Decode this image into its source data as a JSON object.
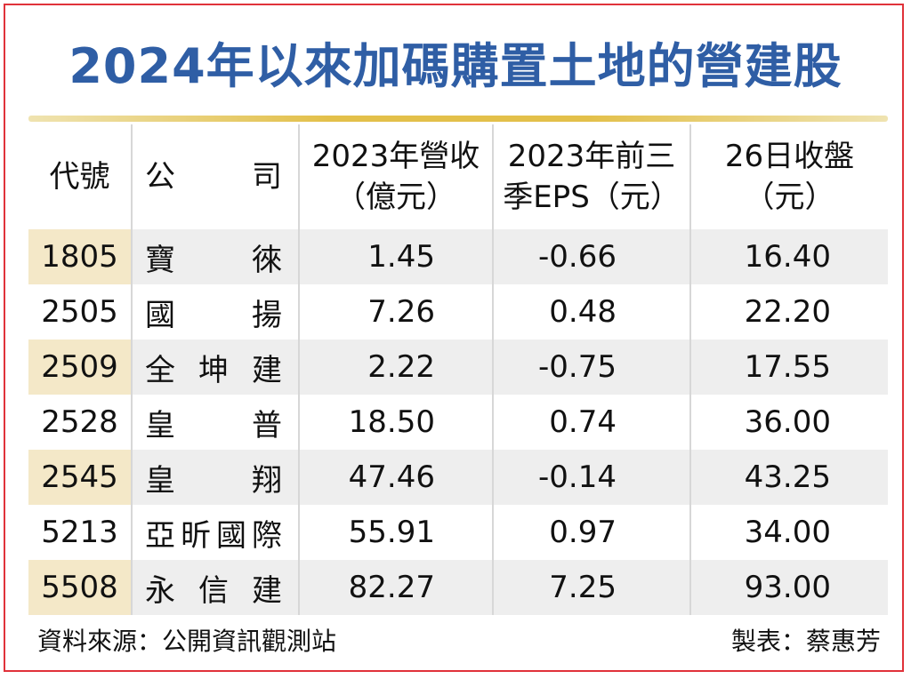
{
  "title": "2024年以來加碼購置土地的營建股",
  "columns": {
    "code": "代號",
    "company": [
      "公",
      "司"
    ],
    "revenue": [
      "2023年營收",
      "（億元）"
    ],
    "eps": [
      "2023年前三",
      "季EPS（元）"
    ],
    "close": [
      "26日收盤",
      "（元）"
    ]
  },
  "rows": [
    {
      "code": "1805",
      "name": [
        "寶",
        "徠"
      ],
      "revenue": "1.45",
      "eps": "-0.66",
      "close": "16.40"
    },
    {
      "code": "2505",
      "name": [
        "國",
        "揚"
      ],
      "revenue": "7.26",
      "eps": "0.48",
      "close": "22.20"
    },
    {
      "code": "2509",
      "name": [
        "全",
        "坤",
        "建"
      ],
      "revenue": "2.22",
      "eps": "-0.75",
      "close": "17.55"
    },
    {
      "code": "2528",
      "name": [
        "皇",
        "普"
      ],
      "revenue": "18.50",
      "eps": "0.74",
      "close": "36.00"
    },
    {
      "code": "2545",
      "name": [
        "皇",
        "翔"
      ],
      "revenue": "47.46",
      "eps": "-0.14",
      "close": "43.25"
    },
    {
      "code": "5213",
      "name": [
        "亞",
        "昕",
        "國",
        "際"
      ],
      "revenue": "55.91",
      "eps": "0.97",
      "close": "34.00"
    },
    {
      "code": "5508",
      "name": [
        "永",
        "信",
        "建"
      ],
      "revenue": "82.27",
      "eps": "7.25",
      "close": "93.00"
    }
  ],
  "footer": {
    "source": "資料來源：公開資訊觀測站",
    "author": "製表：蔡惠芳"
  },
  "colors": {
    "border": "#e0323a",
    "title": "#2f5ea5",
    "rule": "#e3c04a",
    "alt_row": "#eeeeee",
    "alt_code": "#f4e8c8"
  }
}
